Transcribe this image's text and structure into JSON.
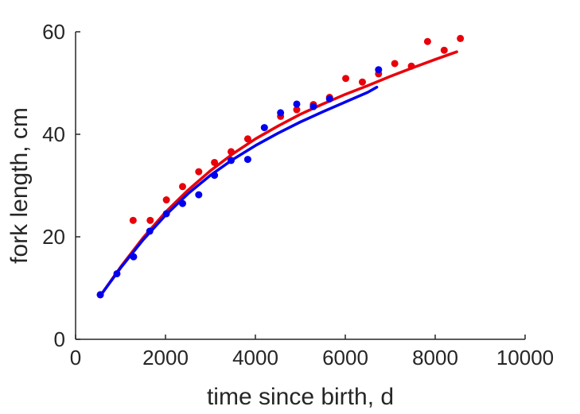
{
  "chart_data": {
    "type": "scatter",
    "title": "",
    "xlabel": "time since birth, d",
    "ylabel": "fork length, cm",
    "xlim": [
      0,
      10000
    ],
    "ylim": [
      0,
      60
    ],
    "xticks": [
      0,
      2000,
      4000,
      6000,
      8000,
      10000
    ],
    "yticks": [
      0,
      20,
      40,
      60
    ],
    "xtick_labels": [
      "0",
      "2000",
      "4000",
      "6000",
      "8000",
      "10000"
    ],
    "ytick_labels": [
      "0",
      "20",
      "40",
      "60"
    ],
    "grid": false,
    "legend": "none",
    "series": [
      {
        "color": "#e8000b",
        "points": {
          "x": [
            550,
            1280,
            1660,
            2020,
            2380,
            2740,
            3090,
            3460,
            3830,
            4560,
            4920,
            5290,
            5650,
            6010,
            6380,
            6740,
            7100,
            7470,
            7830,
            8200,
            8560
          ],
          "y": [
            8.7,
            23.2,
            23.2,
            27.2,
            29.8,
            32.7,
            34.5,
            36.6,
            39.1,
            43.5,
            44.8,
            45.8,
            47.2,
            50.9,
            50.2,
            51.8,
            53.8,
            53.3,
            58.1,
            56.4,
            58.7
          ]
        },
        "fit": {
          "x": [
            550,
            1000,
            1500,
            2000,
            2500,
            3000,
            3500,
            4000,
            4500,
            5000,
            5500,
            6000,
            6500,
            7000,
            7500,
            8000,
            8480
          ],
          "y": [
            8.5,
            14.1,
            19.8,
            24.8,
            29.1,
            32.9,
            36.2,
            39.1,
            41.6,
            43.9,
            45.9,
            47.8,
            49.5,
            51.3,
            53.0,
            54.6,
            56.1
          ]
        }
      },
      {
        "color": "#0000ee",
        "points": {
          "x": [
            550,
            920,
            1290,
            1650,
            2020,
            2380,
            2740,
            3090,
            3460,
            3830,
            4200,
            4560,
            4920,
            5290,
            5650,
            6740
          ],
          "y": [
            8.7,
            12.8,
            16.1,
            21.1,
            24.5,
            26.5,
            28.2,
            32.0,
            34.9,
            35.1,
            41.3,
            44.2,
            45.9,
            45.4,
            46.9,
            52.6
          ]
        },
        "fit": {
          "x": [
            550,
            1000,
            1500,
            2000,
            2500,
            3000,
            3500,
            4000,
            4500,
            5000,
            5500,
            6000,
            6500,
            6700
          ],
          "y": [
            8.5,
            13.9,
            19.4,
            24.2,
            28.4,
            32.0,
            35.1,
            37.8,
            40.2,
            42.4,
            44.4,
            46.3,
            48.2,
            49.2
          ]
        }
      }
    ]
  }
}
